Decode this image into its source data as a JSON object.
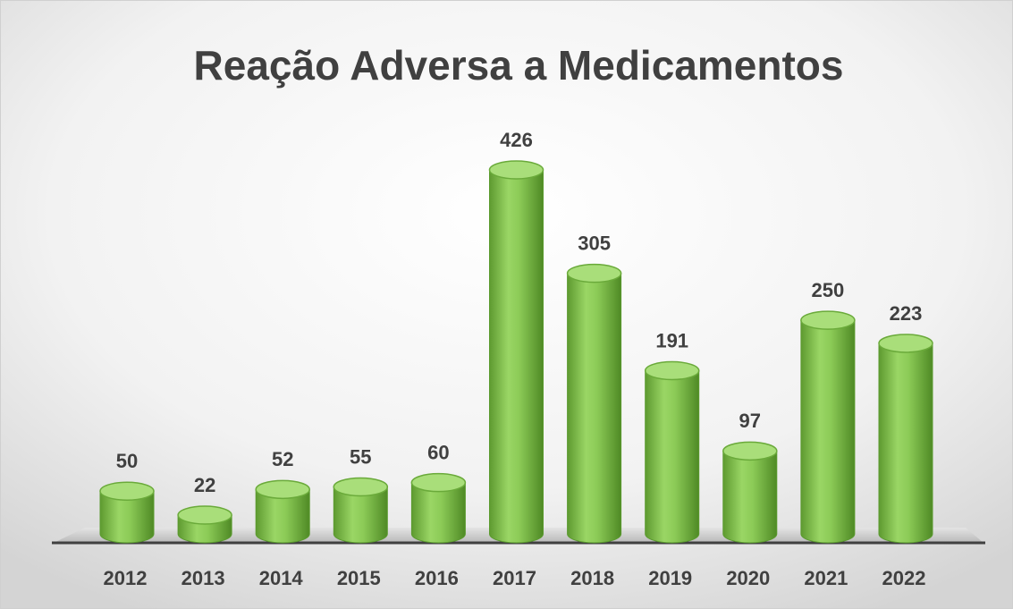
{
  "chart_data": {
    "type": "bar",
    "title": "Reação Adversa a Medicamentos",
    "categories": [
      "2012",
      "2013",
      "2014",
      "2015",
      "2016",
      "2017",
      "2018",
      "2019",
      "2020",
      "2021",
      "2022"
    ],
    "values": [
      50,
      22,
      52,
      55,
      60,
      426,
      305,
      191,
      97,
      250,
      223
    ],
    "color": "#7cbf47"
  }
}
